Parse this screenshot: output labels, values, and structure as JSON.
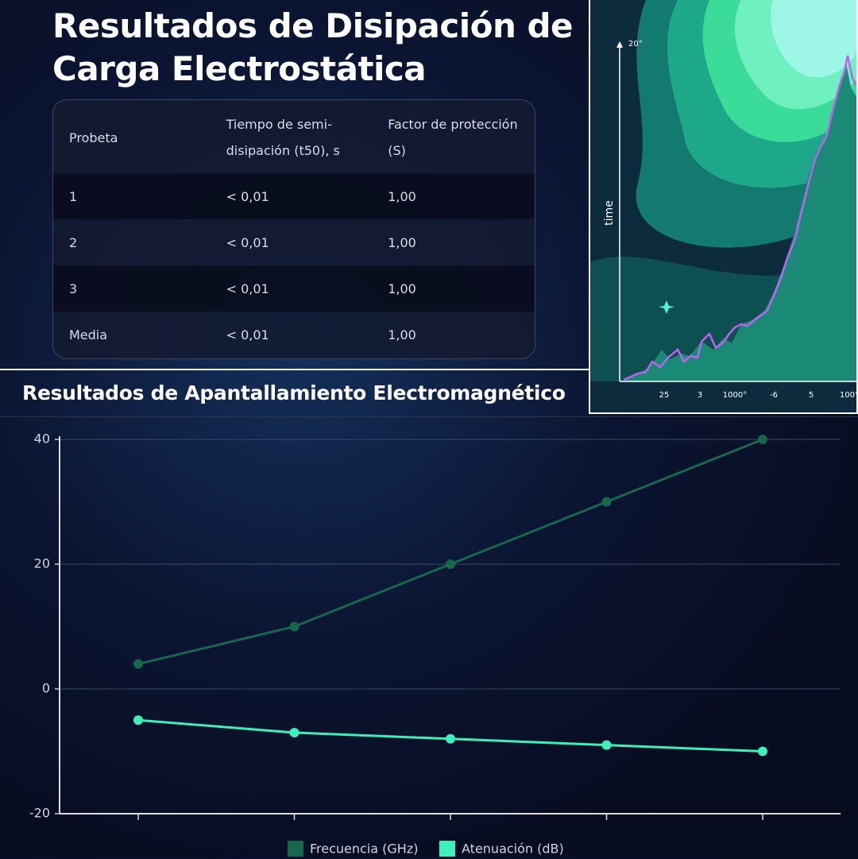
{
  "header": {
    "title": "Resultados de Disipación de Carga Electrostática"
  },
  "table": {
    "columns": [
      "Probeta",
      "Tiempo de semi-disipación (t50), s",
      "Factor de protección (S)"
    ],
    "rows": [
      [
        "1",
        "< 0,01",
        "1,00"
      ],
      [
        "2",
        "< 0,01",
        "1,00"
      ],
      [
        "3",
        "< 0,01",
        "1,00"
      ],
      [
        "Media",
        "< 0,01",
        "1,00"
      ]
    ]
  },
  "illustration": {
    "y_label": "time",
    "y_top_label": "20°",
    "x_labels": [
      "25",
      "3",
      "1000°",
      "-6",
      "5",
      "100°"
    ]
  },
  "chart_data": {
    "type": "line",
    "title": "Resultados de Apantallamiento Electromagnético",
    "categories": [
      null,
      null,
      null,
      null,
      null
    ],
    "series": [
      {
        "name": "Frecuencia (GHz)",
        "color": "#17684b",
        "values": [
          4,
          10,
          20,
          30,
          40
        ]
      },
      {
        "name": "Atenuación (dB)",
        "color": "#3cf0b9",
        "values": [
          -5,
          -7,
          -8,
          -9,
          -10
        ]
      }
    ],
    "ylim": [
      -20,
      40
    ],
    "yticks": [
      -20,
      0,
      20,
      40
    ],
    "grid": true
  }
}
